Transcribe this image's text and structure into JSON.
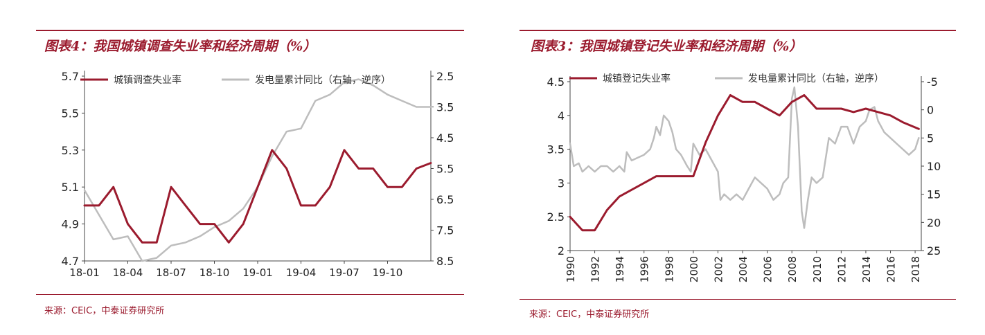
{
  "charts": [
    {
      "title": "图表4：我国城镇调查失业率和经济周期（%）",
      "source": "来源：CEIC，中泰证券研究所"
    },
    {
      "title": "图表3：我国城镇登记失业率和经济周期（%）",
      "source": "来源：CEIC，中泰证券研究所"
    }
  ],
  "chart_data": [
    {
      "type": "line",
      "title": "图表4：我国城镇调查失业率和经济周期（%）",
      "x_type": "month",
      "x_ticks": [
        "18-01",
        "18-04",
        "18-07",
        "18-10",
        "19-01",
        "19-04",
        "19-07",
        "19-10"
      ],
      "x_range": [
        "2018-01",
        "2020-01"
      ],
      "y_left": {
        "range": [
          4.7,
          5.7
        ],
        "ticks": [
          4.7,
          4.9,
          5.1,
          5.3,
          5.5,
          5.7
        ]
      },
      "y_right": {
        "range": [
          2.5,
          8.5
        ],
        "ticks": [
          2.5,
          3.5,
          4.5,
          5.5,
          6.5,
          7.5,
          8.5
        ],
        "inverted": true
      },
      "legend": "top",
      "series": [
        {
          "name": "城镇调查失业率",
          "axis": "left",
          "color": "#9b1b2e",
          "points": [
            [
              "2018-01",
              5.0
            ],
            [
              "2018-02",
              5.0
            ],
            [
              "2018-03",
              5.1
            ],
            [
              "2018-04",
              4.9
            ],
            [
              "2018-05",
              4.8
            ],
            [
              "2018-06",
              4.8
            ],
            [
              "2018-07",
              5.1
            ],
            [
              "2018-08",
              5.0
            ],
            [
              "2018-09",
              4.9
            ],
            [
              "2018-10",
              4.9
            ],
            [
              "2018-11",
              4.8
            ],
            [
              "2018-12",
              4.9
            ],
            [
              "2019-01",
              5.1
            ],
            [
              "2019-02",
              5.3
            ],
            [
              "2019-03",
              5.2
            ],
            [
              "2019-04",
              5.0
            ],
            [
              "2019-05",
              5.0
            ],
            [
              "2019-06",
              5.1
            ],
            [
              "2019-07",
              5.3
            ],
            [
              "2019-08",
              5.2
            ],
            [
              "2019-09",
              5.2
            ],
            [
              "2019-10",
              5.1
            ],
            [
              "2019-11",
              5.1
            ],
            [
              "2019-12",
              5.2
            ],
            [
              "2020-01",
              5.23
            ]
          ]
        },
        {
          "name": "发电量累计同比（右轴，逆序）",
          "axis": "right",
          "color": "#bdbdbd",
          "points": [
            [
              "2018-01",
              6.2
            ],
            [
              "2018-02",
              7.0
            ],
            [
              "2018-03",
              7.8
            ],
            [
              "2018-04",
              7.7
            ],
            [
              "2018-05",
              8.5
            ],
            [
              "2018-06",
              8.4
            ],
            [
              "2018-07",
              8.0
            ],
            [
              "2018-08",
              7.9
            ],
            [
              "2018-09",
              7.7
            ],
            [
              "2018-10",
              7.4
            ],
            [
              "2018-11",
              7.2
            ],
            [
              "2018-12",
              6.8
            ],
            [
              "2019-01",
              6.1
            ],
            [
              "2019-02",
              5.1
            ],
            [
              "2019-03",
              4.3
            ],
            [
              "2019-04",
              4.2
            ],
            [
              "2019-05",
              3.3
            ],
            [
              "2019-06",
              3.1
            ],
            [
              "2019-07",
              2.7
            ],
            [
              "2019-08",
              2.6
            ],
            [
              "2019-09",
              2.8
            ],
            [
              "2019-10",
              3.1
            ],
            [
              "2019-11",
              3.3
            ],
            [
              "2019-12",
              3.5
            ],
            [
              "2020-01",
              3.5
            ]
          ]
        }
      ]
    },
    {
      "type": "line",
      "title": "图表3：我国城镇登记失业率和经济周期（%）",
      "x_type": "year",
      "x_ticks": [
        "1990",
        "1992",
        "1994",
        "1996",
        "1998",
        "2000",
        "2002",
        "2004",
        "2006",
        "2008",
        "2010",
        "2012",
        "2014",
        "2016",
        "2018"
      ],
      "x_range": [
        1990,
        2018.5
      ],
      "y_left": {
        "range": [
          2.0,
          4.5
        ],
        "ticks": [
          2.0,
          2.5,
          3.0,
          3.5,
          4.0,
          4.5
        ]
      },
      "y_right": {
        "range": [
          -5,
          25
        ],
        "ticks": [
          -5,
          0,
          5,
          10,
          15,
          20,
          25
        ],
        "inverted": true
      },
      "legend": "top",
      "series": [
        {
          "name": "城镇登记失业率",
          "axis": "left",
          "color": "#9b1b2e",
          "points": [
            [
              1990,
              2.5
            ],
            [
              1991,
              2.3
            ],
            [
              1992,
              2.3
            ],
            [
              1993,
              2.6
            ],
            [
              1994,
              2.8
            ],
            [
              1995,
              2.9
            ],
            [
              1996,
              3.0
            ],
            [
              1997,
              3.1
            ],
            [
              1998,
              3.1
            ],
            [
              1999,
              3.1
            ],
            [
              2000,
              3.1
            ],
            [
              2001,
              3.6
            ],
            [
              2002,
              4.0
            ],
            [
              2003,
              4.3
            ],
            [
              2004,
              4.2
            ],
            [
              2005,
              4.2
            ],
            [
              2006,
              4.1
            ],
            [
              2007,
              4.0
            ],
            [
              2008,
              4.2
            ],
            [
              2009,
              4.3
            ],
            [
              2010,
              4.1
            ],
            [
              2011,
              4.1
            ],
            [
              2012,
              4.1
            ],
            [
              2013,
              4.05
            ],
            [
              2014,
              4.1
            ],
            [
              2015,
              4.05
            ],
            [
              2016,
              4.0
            ],
            [
              2017,
              3.9
            ],
            [
              2018.3,
              3.8
            ]
          ]
        },
        {
          "name": "发电量累计同比（右轴，逆序）",
          "axis": "right",
          "color": "#bdbdbd",
          "points": [
            [
              1990,
              6
            ],
            [
              1990.3,
              10
            ],
            [
              1990.7,
              9.5
            ],
            [
              1991,
              11
            ],
            [
              1991.5,
              10
            ],
            [
              1992,
              11
            ],
            [
              1992.5,
              10
            ],
            [
              1993,
              10
            ],
            [
              1993.5,
              11
            ],
            [
              1994,
              10
            ],
            [
              1994.4,
              11
            ],
            [
              1994.6,
              7.5
            ],
            [
              1995,
              9
            ],
            [
              1995.5,
              8.5
            ],
            [
              1996,
              8
            ],
            [
              1996.5,
              7
            ],
            [
              1996.8,
              5
            ],
            [
              1997,
              3
            ],
            [
              1997.3,
              4.5
            ],
            [
              1997.6,
              1
            ],
            [
              1998,
              2
            ],
            [
              1998.3,
              4
            ],
            [
              1998.6,
              7
            ],
            [
              1999,
              8
            ],
            [
              1999.5,
              10
            ],
            [
              1999.8,
              11
            ],
            [
              2000,
              6
            ],
            [
              2000.5,
              8
            ],
            [
              2001,
              7
            ],
            [
              2001.5,
              9
            ],
            [
              2002,
              11
            ],
            [
              2002.2,
              16
            ],
            [
              2002.5,
              15
            ],
            [
              2003,
              16
            ],
            [
              2003.5,
              15
            ],
            [
              2004,
              16
            ],
            [
              2004.5,
              14
            ],
            [
              2005,
              12
            ],
            [
              2005.5,
              13
            ],
            [
              2006,
              14
            ],
            [
              2006.5,
              16
            ],
            [
              2007,
              15
            ],
            [
              2007.3,
              13
            ],
            [
              2007.7,
              12
            ],
            [
              2008,
              -2
            ],
            [
              2008.2,
              -4
            ],
            [
              2008.5,
              3
            ],
            [
              2008.8,
              18
            ],
            [
              2009,
              21
            ],
            [
              2009.3,
              16
            ],
            [
              2009.6,
              12
            ],
            [
              2010,
              13
            ],
            [
              2010.5,
              12
            ],
            [
              2011,
              5
            ],
            [
              2011.5,
              6
            ],
            [
              2012,
              3
            ],
            [
              2012.5,
              3
            ],
            [
              2013,
              6
            ],
            [
              2013.5,
              3
            ],
            [
              2014,
              2
            ],
            [
              2014.3,
              0
            ],
            [
              2014.7,
              -0.5
            ],
            [
              2015,
              2
            ],
            [
              2015.5,
              4
            ],
            [
              2016,
              5
            ],
            [
              2016.5,
              6
            ],
            [
              2017,
              7
            ],
            [
              2017.5,
              8
            ],
            [
              2018,
              7
            ],
            [
              2018.3,
              5
            ]
          ]
        }
      ]
    }
  ]
}
